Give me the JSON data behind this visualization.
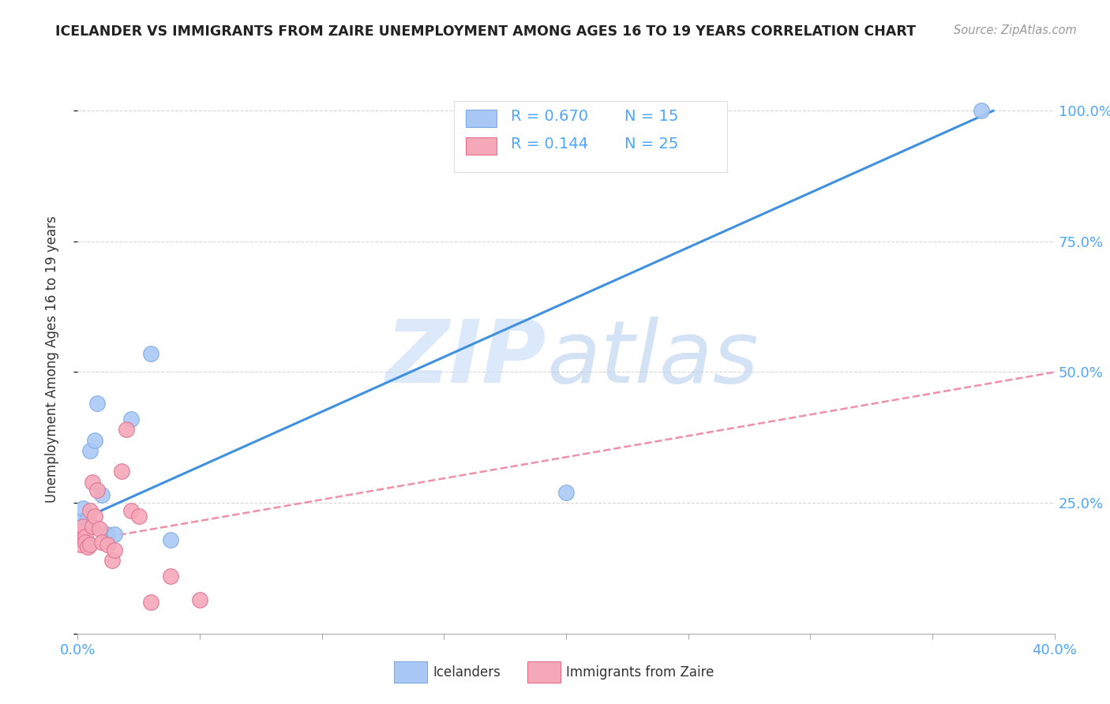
{
  "title": "ICELANDER VS IMMIGRANTS FROM ZAIRE UNEMPLOYMENT AMONG AGES 16 TO 19 YEARS CORRELATION CHART",
  "source": "Source: ZipAtlas.com",
  "ylabel": "Unemployment Among Ages 16 to 19 years",
  "R1": 0.67,
  "N1": 15,
  "R2": 0.144,
  "N2": 25,
  "color_blue": "#aac8f5",
  "color_pink": "#f5a8b8",
  "color_blue_edge": "#7aaae0",
  "color_pink_edge": "#e07090",
  "color_blue_line": "#4090e0",
  "color_pink_line": "#f090a8",
  "color_text_blue": "#4da6ff",
  "color_grid": "#cccccc",
  "watermark_zip_color": "#cce0f8",
  "watermark_atlas_color": "#b8d0f0",
  "xlim": [
    0.0,
    0.4
  ],
  "ylim": [
    0.0,
    1.05
  ],
  "xticks": [
    0.0,
    0.05,
    0.1,
    0.15,
    0.2,
    0.25,
    0.3,
    0.35,
    0.4
  ],
  "yticks": [
    0.0,
    0.25,
    0.5,
    0.75,
    1.0
  ],
  "ytick_labels": [
    "",
    "25.0%",
    "50.0%",
    "75.0%",
    "100.0%"
  ],
  "blue_line_x0": 0.0,
  "blue_line_y0": 0.215,
  "blue_line_x1": 0.375,
  "blue_line_y1": 1.0,
  "pink_line_x0": 0.0,
  "pink_line_y0": 0.175,
  "pink_line_x1": 0.4,
  "pink_line_y1": 0.5,
  "icelanders_x": [
    0.001,
    0.002,
    0.003,
    0.004,
    0.005,
    0.007,
    0.008,
    0.01,
    0.012,
    0.015,
    0.022,
    0.03,
    0.038,
    0.2,
    0.37
  ],
  "icelanders_y": [
    0.215,
    0.24,
    0.2,
    0.22,
    0.35,
    0.37,
    0.44,
    0.265,
    0.19,
    0.19,
    0.41,
    0.535,
    0.18,
    0.27,
    1.0
  ],
  "zaire_x": [
    0.001,
    0.001,
    0.002,
    0.002,
    0.003,
    0.003,
    0.004,
    0.005,
    0.005,
    0.006,
    0.006,
    0.007,
    0.008,
    0.009,
    0.01,
    0.012,
    0.014,
    0.015,
    0.018,
    0.02,
    0.022,
    0.025,
    0.03,
    0.038,
    0.05
  ],
  "zaire_y": [
    0.17,
    0.195,
    0.185,
    0.205,
    0.185,
    0.175,
    0.165,
    0.17,
    0.235,
    0.205,
    0.29,
    0.225,
    0.275,
    0.2,
    0.175,
    0.17,
    0.14,
    0.16,
    0.31,
    0.39,
    0.235,
    0.225,
    0.06,
    0.11,
    0.065
  ],
  "legend1_label": "Icelanders",
  "legend2_label": "Immigrants from Zaire"
}
